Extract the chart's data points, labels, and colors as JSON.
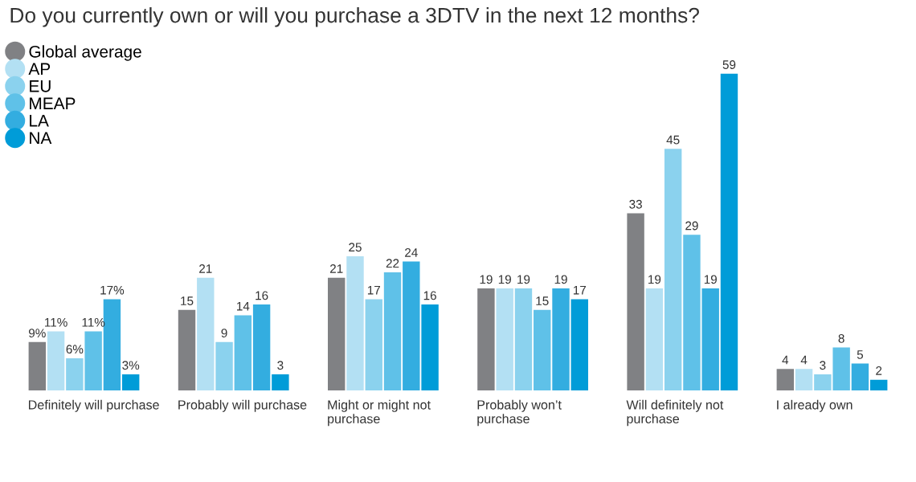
{
  "chart_data": {
    "type": "bar",
    "title": "Do you currently own or will you purchase a 3DTV in the next 12 months?",
    "categories": [
      "Definitely will purchase",
      "Probably will purchase",
      "Might or might not\npurchase",
      "Probably won’t\npurchase",
      "Will definitely not\npurchase",
      "I already own"
    ],
    "legend": "top left",
    "series": [
      {
        "name": "Global average",
        "color": "#808184",
        "values": [
          9,
          15,
          21,
          19,
          33,
          4
        ],
        "value_labels": [
          "9%",
          "15",
          "21",
          "19",
          "33",
          "4"
        ]
      },
      {
        "name": "AP",
        "color": "#b3e0f3",
        "values": [
          11,
          21,
          25,
          19,
          19,
          4
        ],
        "value_labels": [
          "11%",
          "21",
          "25",
          "19",
          "19",
          "4"
        ]
      },
      {
        "name": "EU",
        "color": "#8bd2ee",
        "values": [
          6,
          9,
          17,
          19,
          45,
          3
        ],
        "value_labels": [
          "6%",
          "9",
          "17",
          "19",
          "45",
          "3"
        ]
      },
      {
        "name": "MEAP",
        "color": "#5fc1e8",
        "values": [
          11,
          14,
          22,
          15,
          29,
          8
        ],
        "value_labels": [
          "11%",
          "14",
          "22",
          "15",
          "29",
          "8"
        ]
      },
      {
        "name": "LA",
        "color": "#33ade0",
        "values": [
          17,
          16,
          24,
          19,
          19,
          5
        ],
        "value_labels": [
          "17%",
          "16",
          "24",
          "19",
          "19",
          "5"
        ]
      },
      {
        "name": "NA",
        "color": "#009cd8",
        "values": [
          3,
          3,
          16,
          17,
          59,
          2
        ],
        "value_labels": [
          "3%",
          "3",
          "16",
          "17",
          "59",
          "2"
        ]
      }
    ]
  }
}
